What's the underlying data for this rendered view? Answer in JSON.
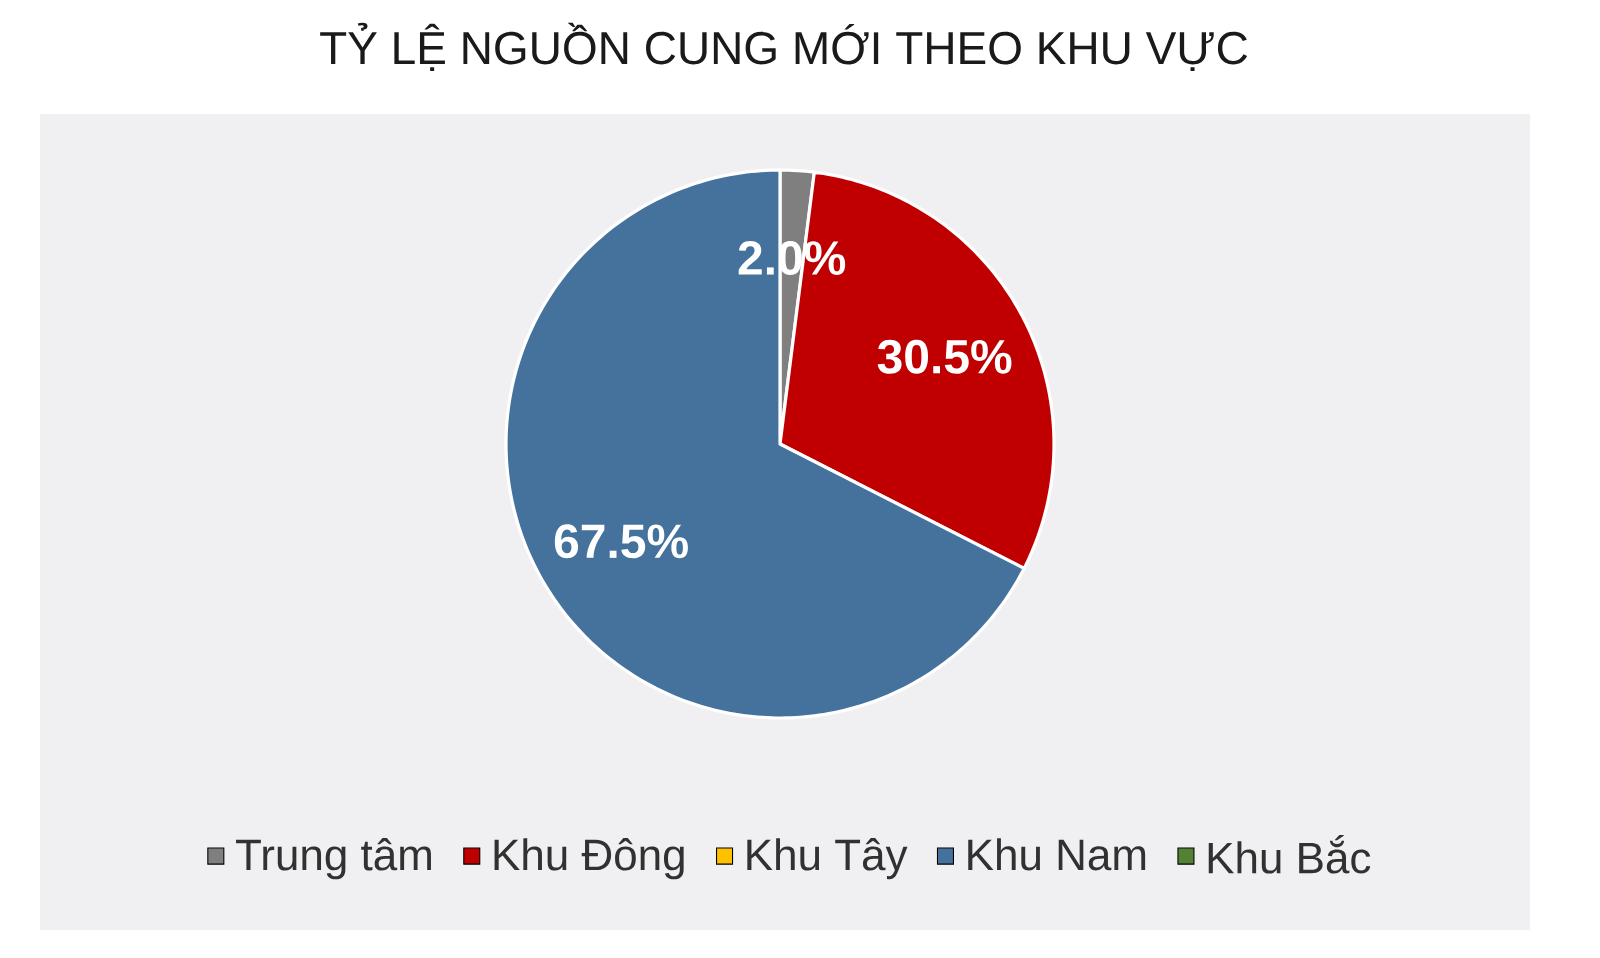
{
  "chart_data": {
    "type": "pie",
    "title": "TỶ LỆ NGUỒN CUNG MỚI THEO KHU VỰC",
    "categories": [
      "Trung tâm",
      "Khu Đông",
      "Khu Tây",
      "Khu Nam",
      "Khu Bắc"
    ],
    "values": [
      2.0,
      30.5,
      0,
      67.5,
      0
    ],
    "colors": [
      "#7f7f7f",
      "#c00000",
      "#ffc000",
      "#44729d",
      "#548235"
    ],
    "value_labels": [
      "2.0%",
      "30.5%",
      null,
      "67.5%",
      null
    ],
    "legend": "bottom"
  }
}
